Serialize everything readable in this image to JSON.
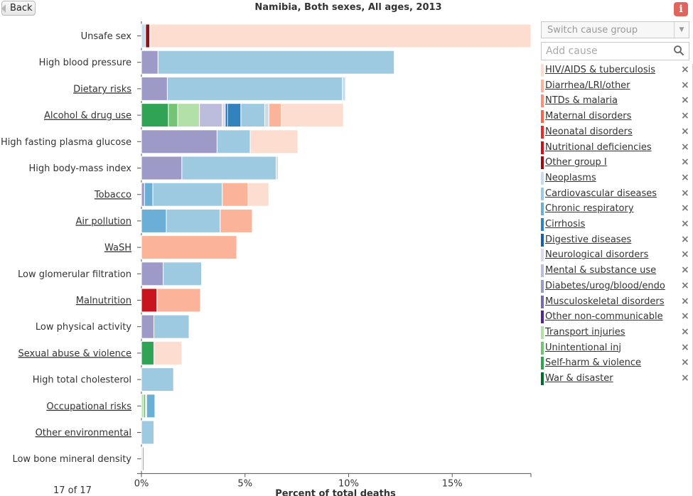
{
  "header": {
    "back_label": "Back",
    "title": "Namibia, Both sexes, All ages, 2013",
    "info_label": "i"
  },
  "controls": {
    "switch_placeholder": "Switch cause group",
    "add_placeholder": "Add cause"
  },
  "footer": {
    "count_text": "17 of 17"
  },
  "colors": {
    "HIV/AIDS & tuberculosis": "#fdddd0",
    "Diarrhea/LRI/other": "#fbb49a",
    "NTDs & malaria": "#f6937a",
    "Maternal disorders": "#ef6a4c",
    "Neonatal disorders": "#e0302a",
    "Nutritional deficiencies": "#c8141f",
    "Other group I": "#9a0d14",
    "Neoplasms": "#c7dcec",
    "Cardiovascular diseases": "#9ecae1",
    "Chronic respiratory": "#6baed6",
    "Cirrhosis": "#3182bd",
    "Digestive diseases": "#1a5fa8",
    "Neurological disorders": "#dadaeb",
    "Mental & substance use": "#bcbddc",
    "Diabetes/urog/blood/endo": "#9e9ac8",
    "Musculoskeletal disorders": "#756bb1",
    "Other non-communicable": "#54278f",
    "Transport injuries": "#b2e0a8",
    "Unintentional inj": "#74c476",
    "Self-harm & violence": "#31a354",
    "War & disaster": "#006d2c"
  },
  "legend": [
    {
      "label": "HIV/AIDS & tuberculosis"
    },
    {
      "label": "Diarrhea/LRI/other"
    },
    {
      "label": "NTDs & malaria"
    },
    {
      "label": "Maternal disorders"
    },
    {
      "label": "Neonatal disorders"
    },
    {
      "label": "Nutritional deficiencies"
    },
    {
      "label": "Other group I"
    },
    {
      "label": "Neoplasms"
    },
    {
      "label": "Cardiovascular diseases"
    },
    {
      "label": "Chronic respiratory"
    },
    {
      "label": "Cirrhosis"
    },
    {
      "label": "Digestive diseases"
    },
    {
      "label": "Neurological disorders"
    },
    {
      "label": "Mental & substance use"
    },
    {
      "label": "Diabetes/urog/blood/endo"
    },
    {
      "label": "Musculoskeletal disorders"
    },
    {
      "label": "Other non-communicable"
    },
    {
      "label": "Transport injuries"
    },
    {
      "label": "Unintentional inj"
    },
    {
      "label": "Self-harm & violence"
    },
    {
      "label": "War & disaster"
    }
  ],
  "chart_data": {
    "type": "bar",
    "orientation": "horizontal",
    "stacked": true,
    "title": "Namibia, Both sexes, All ages, 2013",
    "xlabel": "Percent of total deaths",
    "xlim": [
      0,
      18.8
    ],
    "xticks": [
      0,
      5,
      10,
      15
    ],
    "xtick_labels": [
      "0%",
      "5%",
      "10%",
      "15%"
    ],
    "categories": [
      {
        "label": "Unsafe sex",
        "underlined": false,
        "segments": [
          {
            "cause": "Neoplasms",
            "value": 0.2
          },
          {
            "cause": "Other group I",
            "value": 0.2
          },
          {
            "cause": "HIV/AIDS & tuberculosis",
            "value": 18.4
          }
        ]
      },
      {
        "label": "High blood pressure",
        "underlined": false,
        "segments": [
          {
            "cause": "Diabetes/urog/blood/endo",
            "value": 0.8
          },
          {
            "cause": "Cardiovascular diseases",
            "value": 11.4
          }
        ]
      },
      {
        "label": "Dietary risks",
        "underlined": true,
        "segments": [
          {
            "cause": "Diabetes/urog/blood/endo",
            "value": 1.25
          },
          {
            "cause": "Cardiovascular diseases",
            "value": 8.45
          },
          {
            "cause": "Neoplasms",
            "value": 0.15
          }
        ]
      },
      {
        "label": "Alcohol & drug use",
        "underlined": true,
        "segments": [
          {
            "cause": "Self-harm & violence",
            "value": 1.3
          },
          {
            "cause": "Unintentional inj",
            "value": 0.45
          },
          {
            "cause": "Transport injuries",
            "value": 1.05
          },
          {
            "cause": "Mental & substance use",
            "value": 1.1
          },
          {
            "cause": "Neurological disorders",
            "value": 0.15
          },
          {
            "cause": "Digestive diseases",
            "value": 0.1
          },
          {
            "cause": "Cirrhosis",
            "value": 0.65
          },
          {
            "cause": "Cardiovascular diseases",
            "value": 1.15
          },
          {
            "cause": "Neoplasms",
            "value": 0.2
          },
          {
            "cause": "Diarrhea/LRI/other",
            "value": 0.6
          },
          {
            "cause": "HIV/AIDS & tuberculosis",
            "value": 3.0
          }
        ]
      },
      {
        "label": "High fasting plasma glucose",
        "underlined": false,
        "segments": [
          {
            "cause": "Diabetes/urog/blood/endo",
            "value": 3.65
          },
          {
            "cause": "Cardiovascular diseases",
            "value": 1.6
          },
          {
            "cause": "HIV/AIDS & tuberculosis",
            "value": 2.3
          }
        ]
      },
      {
        "label": "High body-mass index",
        "underlined": false,
        "segments": [
          {
            "cause": "Diabetes/urog/blood/endo",
            "value": 1.95
          },
          {
            "cause": "Cardiovascular diseases",
            "value": 4.55
          },
          {
            "cause": "Neoplasms",
            "value": 0.1
          }
        ]
      },
      {
        "label": "Tobacco",
        "underlined": true,
        "segments": [
          {
            "cause": "Diabetes/urog/blood/endo",
            "value": 0.15
          },
          {
            "cause": "Chronic respiratory",
            "value": 0.4
          },
          {
            "cause": "Cardiovascular diseases",
            "value": 3.35
          },
          {
            "cause": "Diarrhea/LRI/other",
            "value": 1.25
          },
          {
            "cause": "HIV/AIDS & tuberculosis",
            "value": 1.0
          }
        ]
      },
      {
        "label": "Air pollution",
        "underlined": true,
        "segments": [
          {
            "cause": "Chronic respiratory",
            "value": 1.2
          },
          {
            "cause": "Cardiovascular diseases",
            "value": 2.6
          },
          {
            "cause": "Diarrhea/LRI/other",
            "value": 1.55
          }
        ]
      },
      {
        "label": "WaSH",
        "underlined": true,
        "segments": [
          {
            "cause": "Diarrhea/LRI/other",
            "value": 4.6
          }
        ]
      },
      {
        "label": "Low glomerular filtration",
        "underlined": false,
        "segments": [
          {
            "cause": "Diabetes/urog/blood/endo",
            "value": 1.05
          },
          {
            "cause": "Cardiovascular diseases",
            "value": 1.85
          }
        ]
      },
      {
        "label": "Malnutrition",
        "underlined": true,
        "segments": [
          {
            "cause": "Nutritional deficiencies",
            "value": 0.75
          },
          {
            "cause": "Diarrhea/LRI/other",
            "value": 2.1
          }
        ]
      },
      {
        "label": "Low physical activity",
        "underlined": false,
        "segments": [
          {
            "cause": "Diabetes/urog/blood/endo",
            "value": 0.6
          },
          {
            "cause": "Cardiovascular diseases",
            "value": 1.7
          }
        ]
      },
      {
        "label": "Sexual abuse & violence",
        "underlined": true,
        "segments": [
          {
            "cause": "Self-harm & violence",
            "value": 0.6
          },
          {
            "cause": "HIV/AIDS & tuberculosis",
            "value": 1.35
          }
        ]
      },
      {
        "label": "High total cholesterol",
        "underlined": false,
        "segments": [
          {
            "cause": "Cardiovascular diseases",
            "value": 1.55
          }
        ]
      },
      {
        "label": "Occupational risks",
        "underlined": true,
        "segments": [
          {
            "cause": "Transport injuries",
            "value": 0.1
          },
          {
            "cause": "Unintentional inj",
            "value": 0.1
          },
          {
            "cause": "Neoplasms",
            "value": 0.05
          },
          {
            "cause": "Chronic respiratory",
            "value": 0.4
          }
        ]
      },
      {
        "label": "Other environmental",
        "underlined": true,
        "segments": [
          {
            "cause": "Cardiovascular diseases",
            "value": 0.6
          }
        ]
      },
      {
        "label": "Low bone mineral density",
        "underlined": false,
        "segments": [
          {
            "cause": "Transport injuries",
            "value": 0.05
          },
          {
            "cause": "Unintentional inj",
            "value": 0.07
          }
        ]
      }
    ]
  }
}
